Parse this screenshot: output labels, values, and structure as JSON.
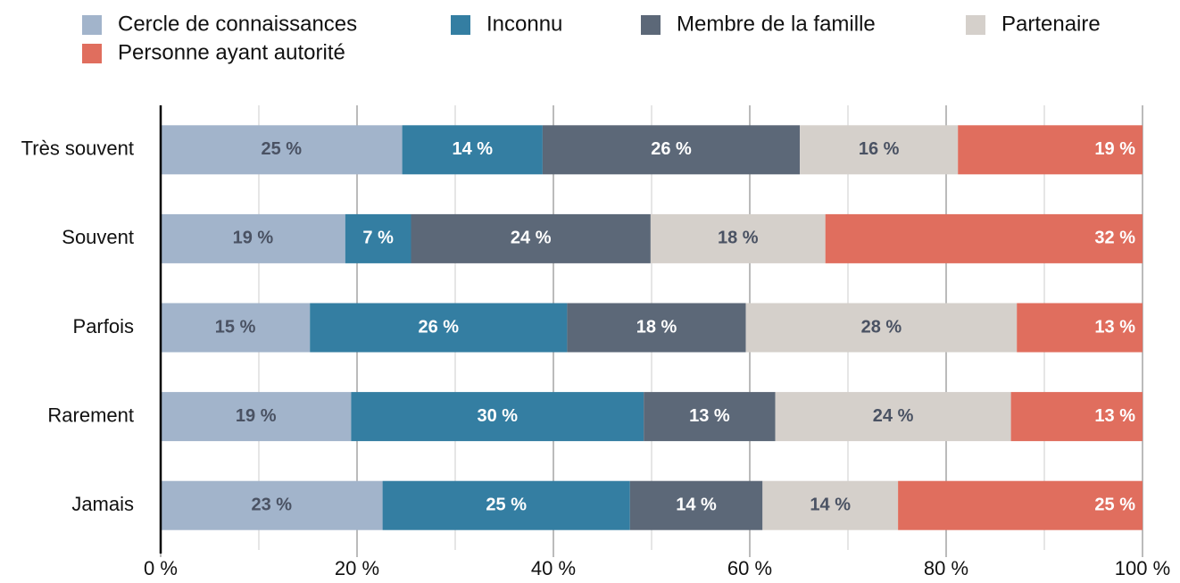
{
  "chart_data": {
    "type": "stacked_barh",
    "categories": [
      "Très souvent",
      "Souvent",
      "Parfois",
      "Rarement",
      "Jamais"
    ],
    "series": [
      {
        "name": "Cercle de connaissances",
        "color": "#a2b4cb",
        "label_color": "#4a5263",
        "values": [
          24.6,
          18.8,
          15.2,
          19.4,
          22.6
        ],
        "value_labels": [
          "25 %",
          "19 %",
          "15 %",
          "19 %",
          "23 %"
        ]
      },
      {
        "name": "Inconnu",
        "color": "#347ea2",
        "label_color": "#ffffff",
        "values": [
          14.3,
          6.7,
          26.2,
          29.8,
          25.2
        ],
        "value_labels": [
          "14 %",
          "7 %",
          "26 %",
          "30 %",
          "25 %"
        ]
      },
      {
        "name": "Membre de la famille",
        "color": "#5c6878",
        "label_color": "#ffffff",
        "values": [
          26.2,
          24.4,
          18.2,
          13.4,
          13.5
        ],
        "value_labels": [
          "26 %",
          "24 %",
          "18 %",
          "13 %",
          "14 %"
        ]
      },
      {
        "name": "Partenaire",
        "color": "#d5d0cb",
        "label_color": "#4a5263",
        "values": [
          16.1,
          17.8,
          27.6,
          24.0,
          13.8
        ],
        "value_labels": [
          "16 %",
          "18 %",
          "28 %",
          "24 %",
          "14 %"
        ]
      },
      {
        "name": "Personne ayant autorité",
        "color": "#e06e5e",
        "label_color": "#ffffff",
        "values": [
          18.8,
          32.3,
          12.8,
          13.4,
          24.9
        ],
        "value_labels": [
          "19 %",
          "32 %",
          "13 %",
          "13 %",
          "25 %"
        ]
      }
    ],
    "xlim": [
      0,
      100
    ],
    "xticks": [
      {
        "value": 0,
        "label": "0 %"
      },
      {
        "value": 20,
        "label": "20 %"
      },
      {
        "value": 40,
        "label": "40 %"
      },
      {
        "value": 60,
        "label": "60 %"
      },
      {
        "value": 80,
        "label": "80 %"
      },
      {
        "value": 100,
        "label": "100 %"
      }
    ],
    "minor_xticks": [
      10,
      30,
      50,
      70,
      90
    ],
    "grid": true,
    "legend": "top-left"
  }
}
